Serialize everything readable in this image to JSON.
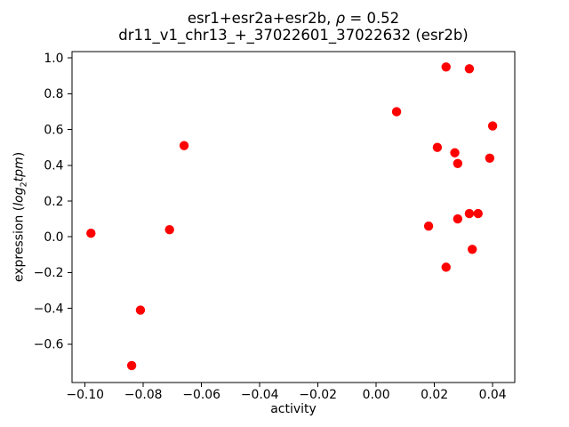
{
  "figure": {
    "title": {
      "line1_prefix": "esr1+esr2a+esr2b, ",
      "line1_rho": "ρ",
      "line1_suffix": " = 0.52",
      "line2": "dr11_v1_chr13_+_37022601_37022632 (esr2b)"
    },
    "xlabel": "activity",
    "ylabel": {
      "prefix": "expression (",
      "math_log": "log",
      "math_sub": "2",
      "math_tpm": "tpm",
      "suffix": ")"
    }
  },
  "chart_data": {
    "type": "scatter",
    "title": "esr1+esr2a+esr2b, ρ = 0.52",
    "subtitle": "dr11_v1_chr13_+_37022601_37022632 (esr2b)",
    "xlabel": "activity",
    "ylabel": "expression (log2 tpm)",
    "grid": false,
    "legend": null,
    "marker": {
      "shape": "circle",
      "color": "#ff0000",
      "radius_px": 5.2
    },
    "xlim": [
      -0.1045,
      0.0476
    ],
    "ylim": [
      -0.815,
      1.036
    ],
    "x_ticks": [
      -0.1,
      -0.08,
      -0.06,
      -0.04,
      -0.02,
      0.0,
      0.02,
      0.04
    ],
    "x_tick_labels": [
      "−0.10",
      "−0.08",
      "−0.06",
      "−0.04",
      "−0.02",
      "0.00",
      "0.02",
      "0.04"
    ],
    "y_ticks": [
      -0.6,
      -0.4,
      -0.2,
      0.0,
      0.2,
      0.4,
      0.6,
      0.8,
      1.0
    ],
    "y_tick_labels": [
      "−0.6",
      "−0.4",
      "−0.2",
      "0.0",
      "0.2",
      "0.4",
      "0.6",
      "0.8",
      "1.0"
    ],
    "points": [
      {
        "x": -0.098,
        "y": 0.02
      },
      {
        "x": -0.084,
        "y": -0.72
      },
      {
        "x": -0.081,
        "y": -0.41
      },
      {
        "x": -0.071,
        "y": 0.04
      },
      {
        "x": -0.066,
        "y": 0.51
      },
      {
        "x": 0.007,
        "y": 0.7
      },
      {
        "x": 0.018,
        "y": 0.06
      },
      {
        "x": 0.021,
        "y": 0.5
      },
      {
        "x": 0.024,
        "y": -0.17
      },
      {
        "x": 0.024,
        "y": 0.95
      },
      {
        "x": 0.027,
        "y": 0.47
      },
      {
        "x": 0.028,
        "y": 0.1
      },
      {
        "x": 0.028,
        "y": 0.41
      },
      {
        "x": 0.032,
        "y": 0.13
      },
      {
        "x": 0.032,
        "y": 0.94
      },
      {
        "x": 0.033,
        "y": -0.07
      },
      {
        "x": 0.035,
        "y": 0.13
      },
      {
        "x": 0.039,
        "y": 0.44
      },
      {
        "x": 0.04,
        "y": 0.62
      }
    ]
  }
}
